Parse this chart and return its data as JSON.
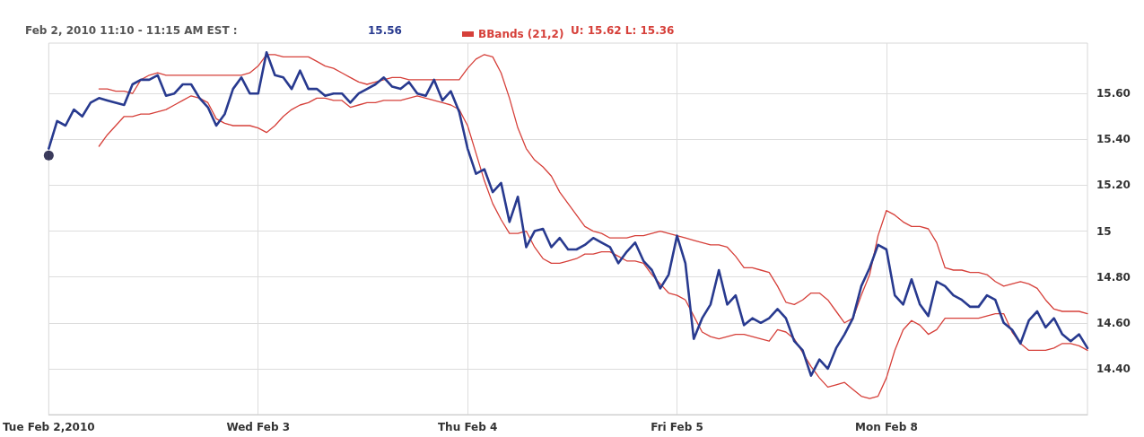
{
  "chart_data": {
    "type": "line",
    "annotations": [
      "Feb 2, 2010 11:10 - 11:15 AM EST :",
      "15.56",
      "U: 15.62 L: 15.36"
    ],
    "categories": [
      "Tue Feb 2,2010",
      null,
      null,
      null,
      null,
      null,
      null,
      null,
      null,
      null,
      null,
      null,
      null,
      null,
      null,
      null,
      null,
      null,
      null,
      null,
      null,
      null,
      null,
      null,
      null,
      "Wed Feb 3",
      null,
      null,
      null,
      null,
      null,
      null,
      null,
      null,
      null,
      null,
      null,
      null,
      null,
      null,
      null,
      null,
      null,
      null,
      null,
      null,
      null,
      null,
      null,
      null,
      "Thu Feb 4",
      null,
      null,
      null,
      null,
      null,
      null,
      null,
      null,
      null,
      null,
      null,
      null,
      null,
      null,
      null,
      null,
      null,
      null,
      null,
      null,
      null,
      null,
      null,
      null,
      "Fri Feb 5",
      null,
      null,
      null,
      null,
      null,
      null,
      null,
      null,
      null,
      null,
      null,
      null,
      null,
      null,
      null,
      null,
      null,
      null,
      null,
      null,
      null,
      null,
      null,
      null,
      "Mon Feb 8",
      null,
      null,
      null,
      null,
      null,
      null,
      null,
      null,
      null,
      null,
      null,
      null,
      null,
      null,
      null,
      null,
      null,
      null,
      null,
      null,
      null,
      null,
      null,
      null
    ],
    "ylim": [
      14.2,
      15.82
    ],
    "yticks": [
      {
        "value": 14.4,
        "label": "14.40"
      },
      {
        "value": 14.6,
        "label": "14.60"
      },
      {
        "value": 14.8,
        "label": "14.80"
      },
      15,
      {
        "value": 15.2,
        "label": "15.20"
      },
      {
        "value": 15.4,
        "label": "15.40"
      },
      {
        "value": 15.6,
        "label": "15.60"
      }
    ],
    "grid": true,
    "legend": "top left",
    "marker": "none",
    "line_style": "solid",
    "series": [
      {
        "color": "#283a8f",
        "values": [
          15.36,
          15.48,
          15.46,
          15.53,
          15.5,
          15.56,
          15.58,
          15.57,
          15.56,
          15.55,
          15.64,
          15.66,
          15.66,
          15.68,
          15.59,
          15.6,
          15.64,
          15.64,
          15.58,
          15.54,
          15.46,
          15.51,
          15.62,
          15.67,
          15.6,
          15.6,
          15.78,
          15.68,
          15.67,
          15.62,
          15.7,
          15.62,
          15.62,
          15.59,
          15.6,
          15.6,
          15.56,
          15.6,
          15.62,
          15.64,
          15.67,
          15.63,
          15.62,
          15.65,
          15.6,
          15.59,
          15.66,
          15.57,
          15.61,
          15.52,
          15.36,
          15.25,
          15.27,
          15.17,
          15.21,
          15.04,
          15.15,
          14.93,
          15.0,
          15.01,
          14.93,
          14.97,
          14.92,
          14.92,
          14.94,
          14.97,
          14.95,
          14.93,
          14.86,
          14.91,
          14.95,
          14.87,
          14.83,
          14.75,
          14.81,
          14.98,
          14.86,
          14.53,
          14.62,
          14.68,
          14.83,
          14.68,
          14.72,
          14.59,
          14.62,
          14.6,
          14.62,
          14.66,
          14.62,
          14.52,
          14.48,
          14.37,
          14.44,
          14.4,
          14.49,
          14.55,
          14.62,
          14.76,
          14.84,
          14.94,
          14.92,
          14.72,
          14.68,
          14.79,
          14.68,
          14.63,
          14.78,
          14.76,
          14.72,
          14.7,
          14.67,
          14.67,
          14.72,
          14.7,
          14.6,
          14.57,
          14.51,
          14.61,
          14.65,
          14.58,
          14.62,
          14.55,
          14.52,
          14.55,
          14.49
        ]
      },
      {
        "name": "BBands (21,2)",
        "color": "#d6403a",
        "values": [
          null,
          null,
          null,
          null,
          null,
          null,
          15.62,
          15.62,
          15.61,
          15.61,
          15.6,
          15.66,
          15.68,
          15.69,
          15.68,
          15.68,
          15.68,
          15.68,
          15.68,
          15.68,
          15.68,
          15.68,
          15.68,
          15.68,
          15.69,
          15.72,
          15.77,
          15.77,
          15.76,
          15.76,
          15.76,
          15.76,
          15.74,
          15.72,
          15.71,
          15.69,
          15.67,
          15.65,
          15.64,
          15.65,
          15.66,
          15.67,
          15.67,
          15.66,
          15.66,
          15.66,
          15.66,
          15.66,
          15.66,
          15.66,
          15.71,
          15.75,
          15.77,
          15.76,
          15.69,
          15.58,
          15.45,
          15.36,
          15.31,
          15.28,
          15.24,
          15.17,
          15.12,
          15.07,
          15.02,
          15.0,
          14.99,
          14.97,
          14.97,
          14.97,
          14.98,
          14.98,
          14.99,
          15.0,
          14.99,
          14.98,
          14.97,
          14.96,
          14.95,
          14.94,
          14.94,
          14.93,
          14.89,
          14.84,
          14.84,
          14.83,
          14.82,
          14.76,
          14.69,
          14.68,
          14.7,
          14.73,
          14.73,
          14.7,
          14.65,
          14.6,
          14.62,
          14.72,
          14.81,
          14.98,
          15.09,
          15.07,
          15.04,
          15.02,
          15.02,
          15.01,
          14.95,
          14.84,
          14.83,
          14.83,
          14.82,
          14.82,
          14.81,
          14.78,
          14.76,
          14.77,
          14.78,
          14.77,
          14.75,
          14.7,
          14.66,
          14.65,
          14.65,
          14.65,
          14.64
        ]
      },
      {
        "color": "#d6403a",
        "values": [
          null,
          null,
          null,
          null,
          null,
          null,
          15.37,
          15.42,
          15.46,
          15.5,
          15.5,
          15.51,
          15.51,
          15.52,
          15.53,
          15.55,
          15.57,
          15.59,
          15.58,
          15.56,
          15.49,
          15.47,
          15.46,
          15.46,
          15.46,
          15.45,
          15.43,
          15.46,
          15.5,
          15.53,
          15.55,
          15.56,
          15.58,
          15.58,
          15.57,
          15.57,
          15.54,
          15.55,
          15.56,
          15.56,
          15.57,
          15.57,
          15.57,
          15.58,
          15.59,
          15.58,
          15.57,
          15.56,
          15.55,
          15.53,
          15.46,
          15.34,
          15.22,
          15.12,
          15.05,
          14.99,
          14.99,
          15.0,
          14.93,
          14.88,
          14.86,
          14.86,
          14.87,
          14.88,
          14.9,
          14.9,
          14.91,
          14.91,
          14.89,
          14.87,
          14.87,
          14.86,
          14.81,
          14.77,
          14.73,
          14.72,
          14.7,
          14.63,
          14.56,
          14.54,
          14.53,
          14.54,
          14.55,
          14.55,
          14.54,
          14.53,
          14.52,
          14.57,
          14.56,
          14.53,
          14.47,
          14.41,
          14.36,
          14.32,
          14.33,
          14.34,
          14.31,
          14.28,
          14.27,
          14.28,
          14.36,
          14.48,
          14.57,
          14.61,
          14.59,
          14.55,
          14.57,
          14.62,
          14.62,
          14.62,
          14.62,
          14.62,
          14.63,
          14.64,
          14.64,
          14.56,
          14.51,
          14.48,
          14.48,
          14.48,
          14.49,
          14.51,
          14.51,
          14.5,
          14.48
        ]
      },
      {
        "type": "scatter",
        "marker": "circle",
        "color": "#0a0a33",
        "values": [
          15.33,
          null,
          null,
          null,
          null,
          null,
          null,
          null,
          null,
          null,
          null,
          null,
          null,
          null,
          null,
          null,
          null,
          null,
          null,
          null,
          null,
          null,
          null,
          null,
          null,
          null,
          null,
          null,
          null,
          null,
          null,
          null,
          null,
          null,
          null,
          null,
          null,
          null,
          null,
          null,
          null,
          null,
          null,
          null,
          null,
          null,
          null,
          null,
          null,
          null,
          null,
          null,
          null,
          null,
          null,
          null,
          null,
          null,
          null,
          null,
          null,
          null,
          null,
          null,
          null,
          null,
          null,
          null,
          null,
          null,
          null,
          null,
          null,
          null,
          null,
          null,
          null,
          null,
          null,
          null,
          null,
          null,
          null,
          null,
          null,
          null,
          null,
          null,
          null,
          null,
          null,
          null,
          null,
          null,
          null,
          null,
          null,
          null,
          null,
          null,
          null,
          null,
          null,
          null,
          null,
          null,
          null,
          null,
          null,
          null,
          null,
          null,
          null,
          null,
          null,
          null,
          null,
          null,
          null,
          null,
          null,
          null,
          null,
          null,
          null
        ]
      }
    ]
  }
}
